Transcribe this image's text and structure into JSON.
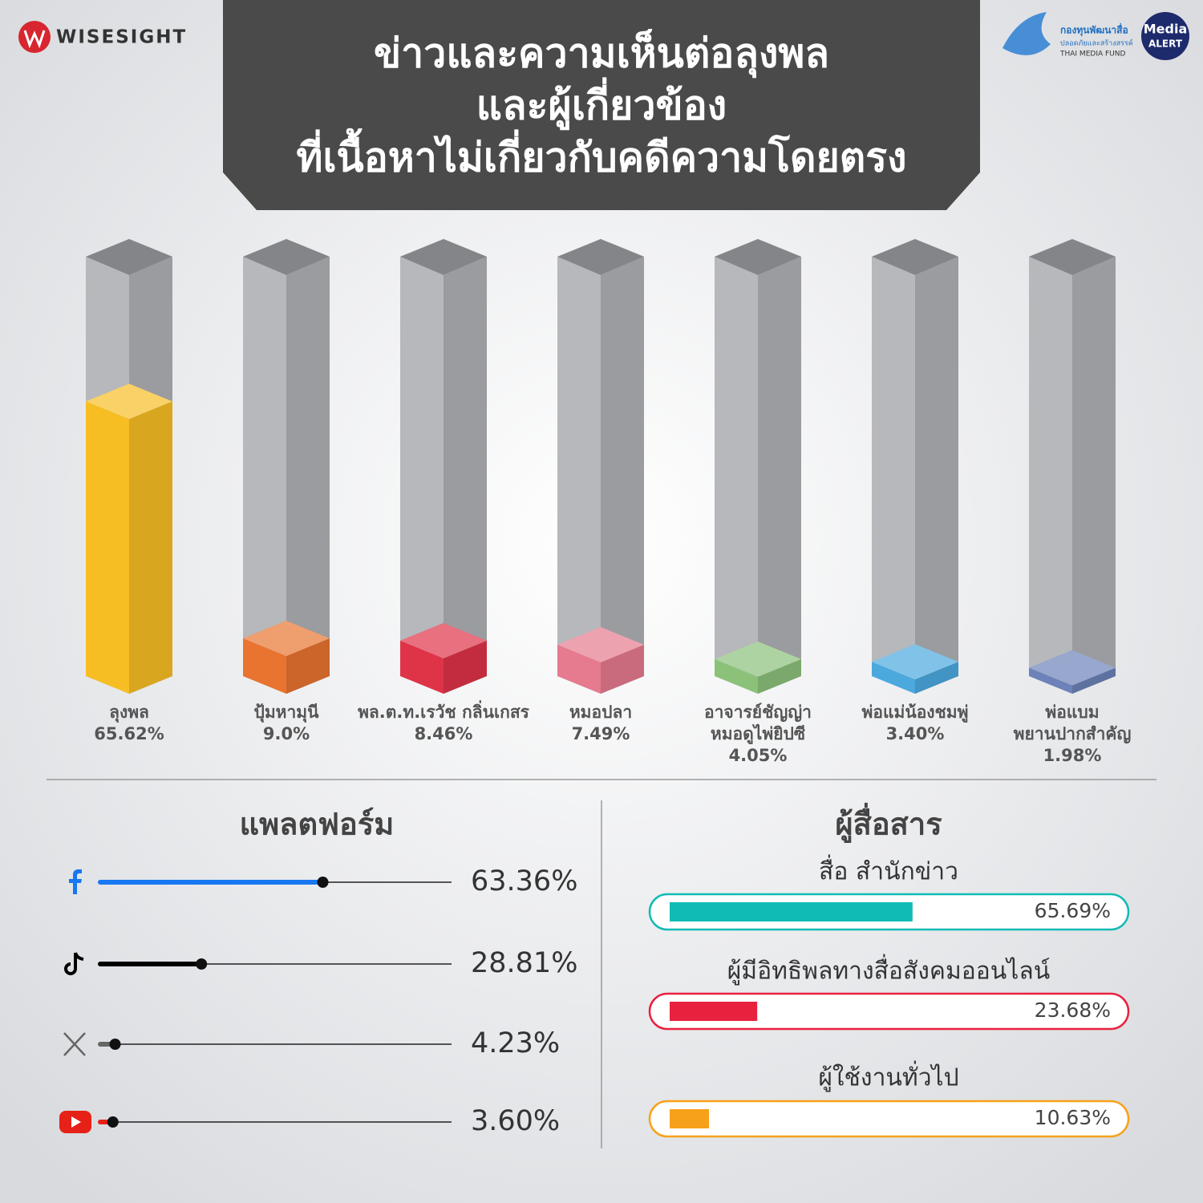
{
  "logos": {
    "wisesight": "WISESIGHT",
    "fund": "กองทุนพัฒนาสื่อ",
    "fund_sub": "ปลอดภัยและสร้างสรรค์",
    "fund_en": "THAI MEDIA FUND",
    "media_alert": [
      "Media",
      "ALERT"
    ]
  },
  "chart_data": [
    {
      "type": "bar3d",
      "title": [
        "ข่าวและความเห็นต่อลุงพล",
        "และผู้เกี่ยวข้อง",
        "ที่เนื้อหาไม่เกี่ยวกับคดีความโดยตรง"
      ],
      "categories": [
        [
          "ลุงพล"
        ],
        [
          "ปุ้มหามุนี"
        ],
        [
          "พล.ต.ท.เรวัช กลิ่นเกสร"
        ],
        [
          "หมอปลา"
        ],
        [
          "อาจารย์ชัญญ่า",
          "หมอดูไพ่ยิปซี"
        ],
        [
          "พ่อแม่น้องชมพู่"
        ],
        [
          "พ่อแบม",
          "พยานปากสำคัญ"
        ]
      ],
      "values": [
        65.62,
        9.0,
        8.46,
        7.49,
        4.05,
        3.4,
        1.98
      ],
      "value_labels": [
        "65.62%",
        "9.0%",
        "8.46%",
        "7.49%",
        "4.05%",
        "3.40%",
        "1.98%"
      ],
      "colors": [
        "#f7be24",
        "#e8742f",
        "#df3348",
        "#e67a8f",
        "#8cc17a",
        "#4ba9de",
        "#6c82b8"
      ],
      "ylim": [
        0,
        100
      ]
    },
    {
      "type": "lollipop",
      "title": "แพลตฟอร์ม",
      "categories": [
        null,
        null,
        null,
        null
      ],
      "values": [
        63.36,
        28.81,
        4.23,
        3.6
      ],
      "value_labels": [
        "63.36%",
        "28.81%",
        "4.23%",
        "3.60%"
      ],
      "colors": [
        "#1877f2",
        "#000000",
        "#666666",
        "#e62117"
      ],
      "xlim": [
        0,
        100
      ]
    },
    {
      "type": "capsule",
      "title": "ผู้สื่อสาร",
      "categories": [
        "สื่อ สำนักข่าว",
        "ผู้มีอิทธิพลทางสื่อสังคมออนไลน์",
        "ผู้ใช้งานทั่วไป"
      ],
      "values": [
        65.69,
        23.68,
        10.63
      ],
      "value_labels": [
        "65.69%",
        "23.68%",
        "10.63%"
      ],
      "colors": [
        "#11bbb5",
        "#e8213f",
        "#f7a11a"
      ],
      "xlim": [
        0,
        100
      ]
    }
  ]
}
